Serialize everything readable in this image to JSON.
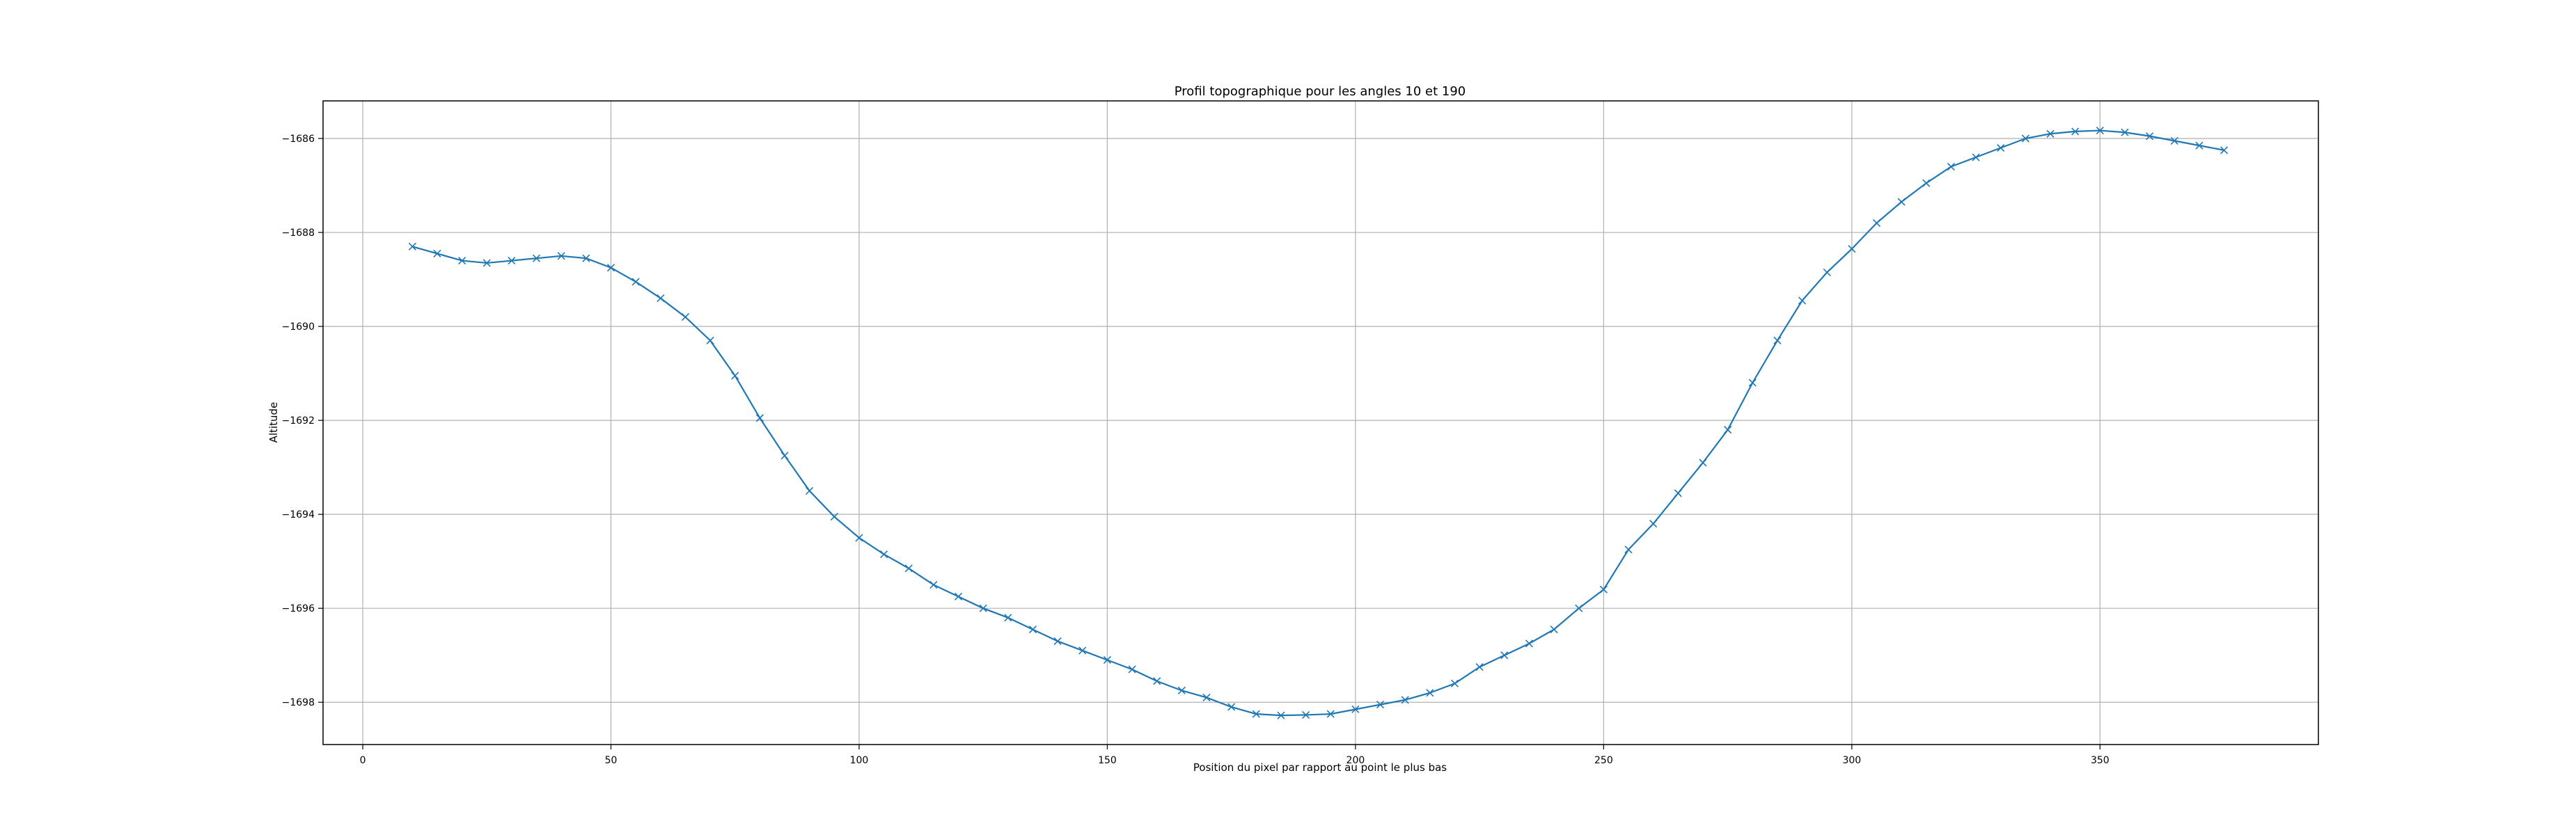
{
  "chart_data": {
    "type": "line",
    "title": "Profil topographique pour les angles 10 et 190",
    "xlabel": "Position du pixel par rapport au point le plus bas",
    "ylabel": "Altitude",
    "xlim": [
      -8,
      394
    ],
    "ylim": [
      -1698.9,
      -1685.2
    ],
    "xticks": [
      0,
      50,
      100,
      150,
      200,
      250,
      300,
      350
    ],
    "yticks": [
      -1686,
      -1688,
      -1690,
      -1692,
      -1694,
      -1696,
      -1698
    ],
    "grid": true,
    "line_color": "#1f77b4",
    "marker": "x",
    "series": [
      {
        "x": [
          10,
          15,
          20,
          25,
          30,
          35,
          40,
          45,
          50,
          55,
          60,
          65,
          70,
          75,
          80,
          85,
          90,
          95,
          100,
          105,
          110,
          115,
          120,
          125,
          130,
          135,
          140,
          145,
          150,
          155,
          160,
          165,
          170,
          175,
          180,
          185,
          190,
          195,
          200,
          205,
          210,
          215,
          220,
          225,
          230,
          235,
          240,
          245,
          250,
          255,
          260,
          265,
          270,
          275,
          280,
          285,
          290,
          295,
          300,
          305,
          310,
          315,
          320,
          325,
          330,
          335,
          340,
          345,
          350,
          355,
          360,
          365,
          370,
          375
        ],
        "y": [
          -1688.3,
          -1688.45,
          -1688.6,
          -1688.65,
          -1688.6,
          -1688.55,
          -1688.5,
          -1688.55,
          -1688.75,
          -1689.05,
          -1689.4,
          -1689.8,
          -1690.3,
          -1691.05,
          -1691.95,
          -1692.75,
          -1693.5,
          -1694.05,
          -1694.5,
          -1694.85,
          -1695.15,
          -1695.5,
          -1695.75,
          -1696.0,
          -1696.2,
          -1696.45,
          -1696.7,
          -1696.9,
          -1697.1,
          -1697.3,
          -1697.55,
          -1697.75,
          -1697.9,
          -1698.1,
          -1698.25,
          -1698.28,
          -1698.27,
          -1698.25,
          -1698.15,
          -1698.05,
          -1697.95,
          -1697.8,
          -1697.6,
          -1697.25,
          -1697.0,
          -1696.75,
          -1696.45,
          -1696.0,
          -1695.6,
          -1694.75,
          -1694.2,
          -1693.55,
          -1692.9,
          -1692.2,
          -1691.2,
          -1690.3,
          -1689.45,
          -1688.85,
          -1688.35,
          -1687.8,
          -1687.35,
          -1686.95,
          -1686.6,
          -1686.4,
          -1686.2,
          -1686.0,
          -1685.9,
          -1685.85,
          -1685.83,
          -1685.87,
          -1685.95,
          -1686.05,
          -1686.15,
          -1686.25
        ]
      }
    ]
  }
}
